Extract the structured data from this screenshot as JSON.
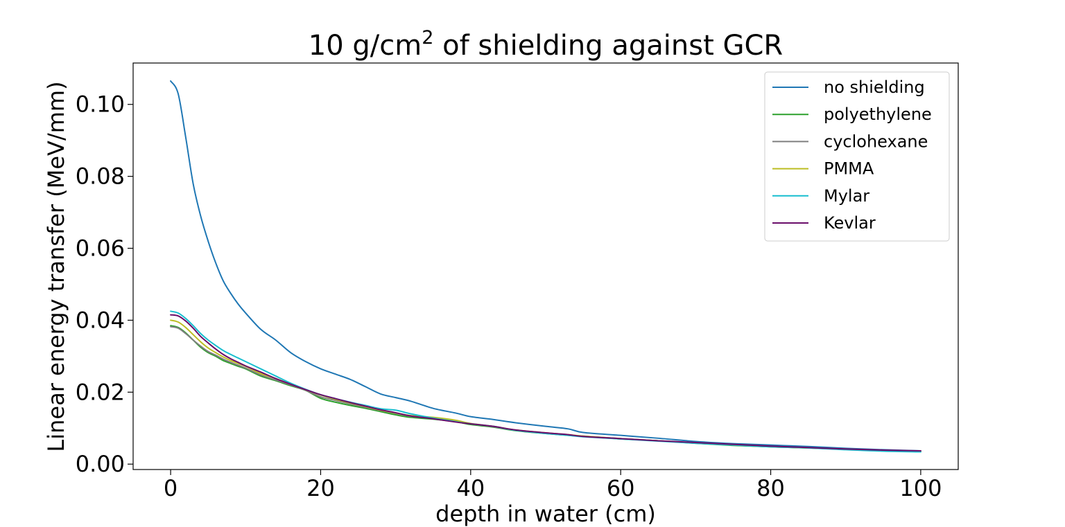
{
  "chart_data": {
    "type": "line",
    "title": {
      "prefix": "10 g/cm",
      "superscript": "2",
      "suffix": " of shielding against GCR"
    },
    "xlabel": "depth in water (cm)",
    "ylabel": "Linear energy transfer (MeV/mm)",
    "xlim": [
      -5,
      105
    ],
    "ylim": [
      -0.0015,
      0.1115
    ],
    "x_ticks": [
      0,
      20,
      40,
      60,
      80,
      100
    ],
    "x_tick_labels": [
      "0",
      "20",
      "40",
      "60",
      "80",
      "100"
    ],
    "y_ticks": [
      0.0,
      0.02,
      0.04,
      0.06,
      0.08,
      0.1
    ],
    "y_tick_labels": [
      "0.00",
      "0.02",
      "0.04",
      "0.06",
      "0.08",
      "0.10"
    ],
    "grid": false,
    "legend_position": "upper right",
    "x": [
      0,
      1,
      2,
      3,
      4,
      5,
      6,
      7,
      8,
      9,
      10,
      12,
      14,
      16,
      18,
      20,
      22,
      24,
      26,
      28,
      30,
      32,
      35,
      38,
      40,
      43,
      46,
      50,
      53,
      55,
      60,
      65,
      70,
      75,
      80,
      85,
      90,
      95,
      100
    ],
    "series": [
      {
        "name": "no shielding",
        "color": "#1f77b4",
        "values": [
          0.1065,
          0.103,
          0.091,
          0.078,
          0.069,
          0.062,
          0.056,
          0.051,
          0.0475,
          0.0445,
          0.042,
          0.0375,
          0.0345,
          0.031,
          0.0285,
          0.0265,
          0.025,
          0.0235,
          0.0215,
          0.0195,
          0.0185,
          0.0175,
          0.0155,
          0.0142,
          0.0132,
          0.0124,
          0.0115,
          0.0105,
          0.0098,
          0.0088,
          0.008,
          0.0072,
          0.0063,
          0.0057,
          0.0053,
          0.0049,
          0.0044,
          0.004,
          0.0037
        ]
      },
      {
        "name": "polyethylene",
        "color": "#2ca02c",
        "values": [
          0.0385,
          0.038,
          0.0365,
          0.0345,
          0.0325,
          0.031,
          0.03,
          0.0288,
          0.028,
          0.0272,
          0.0265,
          0.0245,
          0.0232,
          0.0218,
          0.0205,
          0.0183,
          0.0172,
          0.0163,
          0.0155,
          0.0146,
          0.0137,
          0.013,
          0.0125,
          0.0118,
          0.011,
          0.0103,
          0.0093,
          0.0085,
          0.008,
          0.0077,
          0.007,
          0.0065,
          0.0058,
          0.0052,
          0.0048,
          0.0045,
          0.0042,
          0.0038,
          0.0036
        ]
      },
      {
        "name": "cyclohexane",
        "color": "#7f7f7f",
        "values": [
          0.0382,
          0.0378,
          0.0363,
          0.0345,
          0.0328,
          0.0313,
          0.0303,
          0.0292,
          0.0283,
          0.0275,
          0.0267,
          0.0248,
          0.0234,
          0.022,
          0.0205,
          0.0187,
          0.0177,
          0.0167,
          0.0158,
          0.0149,
          0.0141,
          0.0133,
          0.0127,
          0.0119,
          0.0112,
          0.0104,
          0.0094,
          0.0086,
          0.0081,
          0.0078,
          0.0071,
          0.0065,
          0.0059,
          0.0053,
          0.0049,
          0.0045,
          0.0042,
          0.0038,
          0.0036
        ]
      },
      {
        "name": "PMMA",
        "color": "#bcbd22",
        "values": [
          0.04,
          0.0395,
          0.038,
          0.036,
          0.034,
          0.0323,
          0.031,
          0.0298,
          0.0288,
          0.028,
          0.0272,
          0.0252,
          0.0238,
          0.0222,
          0.0207,
          0.0192,
          0.018,
          0.017,
          0.016,
          0.015,
          0.0142,
          0.0135,
          0.013,
          0.0122,
          0.0113,
          0.0105,
          0.0095,
          0.0087,
          0.0082,
          0.0078,
          0.0071,
          0.0065,
          0.0059,
          0.0053,
          0.0048,
          0.0045,
          0.0041,
          0.0037,
          0.0035
        ]
      },
      {
        "name": "Mylar",
        "color": "#17becf",
        "values": [
          0.0425,
          0.042,
          0.0405,
          0.0385,
          0.0363,
          0.0345,
          0.033,
          0.0316,
          0.0305,
          0.0295,
          0.0285,
          0.0265,
          0.0245,
          0.0225,
          0.0208,
          0.0193,
          0.0182,
          0.0172,
          0.0163,
          0.0154,
          0.015,
          0.014,
          0.0128,
          0.0118,
          0.0112,
          0.0105,
          0.0094,
          0.0085,
          0.008,
          0.0076,
          0.007,
          0.0064,
          0.0058,
          0.0053,
          0.0048,
          0.0045,
          0.004,
          0.0036,
          0.0034
        ]
      },
      {
        "name": "Kevlar",
        "color": "#6a0d6a",
        "values": [
          0.0415,
          0.0412,
          0.0398,
          0.0378,
          0.0355,
          0.0337,
          0.032,
          0.0305,
          0.0293,
          0.0283,
          0.0273,
          0.0256,
          0.0238,
          0.0222,
          0.0207,
          0.0193,
          0.0182,
          0.0171,
          0.0161,
          0.0151,
          0.0143,
          0.0134,
          0.0126,
          0.0117,
          0.0112,
          0.0105,
          0.0095,
          0.0087,
          0.0082,
          0.0077,
          0.0071,
          0.0065,
          0.006,
          0.0055,
          0.005,
          0.0046,
          0.0042,
          0.0039,
          0.0037
        ]
      }
    ]
  }
}
